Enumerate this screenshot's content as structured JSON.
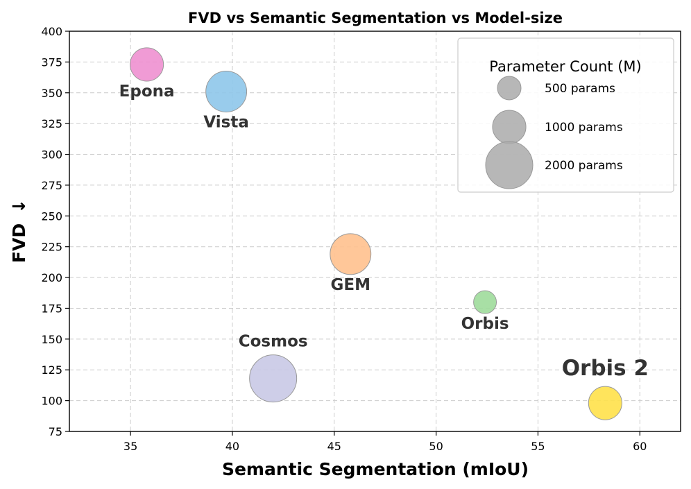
{
  "chart_data": {
    "type": "scatter",
    "title": "FVD vs Semantic Segmentation vs Model-size",
    "xlabel": "Semantic Segmentation (mIoU)",
    "ylabel": "FVD",
    "ylabel_arrow": "↓",
    "xlim": [
      32,
      62
    ],
    "ylim": [
      75,
      400
    ],
    "xticks": [
      35,
      40,
      45,
      50,
      55,
      60
    ],
    "yticks": [
      75,
      100,
      125,
      150,
      175,
      200,
      225,
      250,
      275,
      300,
      325,
      350,
      375,
      400
    ],
    "grid": true,
    "points": [
      {
        "label": "Epona",
        "x": 35.8,
        "y": 373,
        "params": 1000,
        "color": "#ee90d0",
        "label_pos": "below"
      },
      {
        "label": "Vista",
        "x": 39.7,
        "y": 351,
        "params": 1500,
        "color": "#8ec6ea",
        "label_pos": "below"
      },
      {
        "label": "GEM",
        "x": 45.8,
        "y": 219,
        "params": 1500,
        "color": "#ffc18e",
        "label_pos": "below"
      },
      {
        "label": "Orbis",
        "x": 52.4,
        "y": 180,
        "params": 469,
        "color": "#9edb9b",
        "label_pos": "below"
      },
      {
        "label": "Cosmos",
        "x": 42.0,
        "y": 118,
        "params": 2000,
        "color": "#c9c9e6",
        "label_pos": "above"
      },
      {
        "label": "Orbis 2",
        "x": 58.3,
        "y": 98,
        "params": 1000,
        "color": "#ffe14a",
        "label_pos": "above",
        "emphasis": true
      }
    ],
    "legend": {
      "title": "Parameter Count (M)",
      "placement": "top-right",
      "entries": [
        {
          "label": "500 params",
          "params": 500
        },
        {
          "label": "1000 params",
          "params": 1000
        },
        {
          "label": "2000 params",
          "params": 2000
        }
      ]
    }
  }
}
